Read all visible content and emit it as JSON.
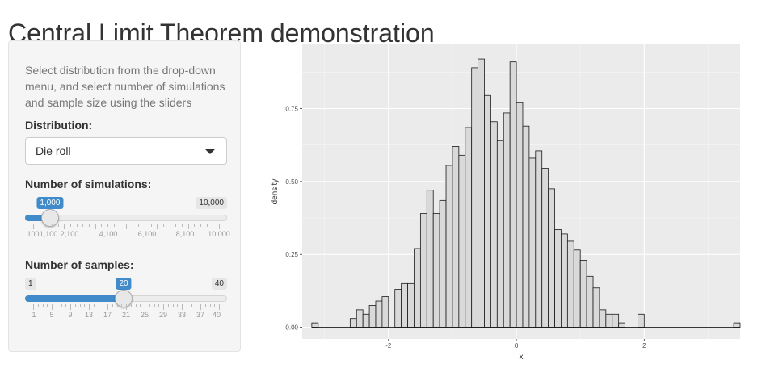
{
  "page": {
    "title": "Central Limit Theorem demonstration"
  },
  "sidebar": {
    "description": "Select distribution from the drop-down menu, and select number of simulations and sample size using the sliders",
    "distribution": {
      "label": "Distribution:",
      "selected": "Die roll"
    },
    "simulations": {
      "label": "Number of simulations:",
      "min": 100,
      "max": 10000,
      "value": 1000,
      "min_label": "100",
      "max_label": "10,000",
      "value_label": "1,000",
      "tick_labels": [
        "100",
        "1,100",
        "2,100",
        "4,100",
        "6,100",
        "8,100",
        "10,000"
      ]
    },
    "samples": {
      "label": "Number of samples:",
      "min": 1,
      "max": 40,
      "value": 20,
      "min_label": "1",
      "max_label": "40",
      "value_label": "20",
      "tick_labels": [
        "1",
        "5",
        "9",
        "13",
        "17",
        "21",
        "25",
        "29",
        "33",
        "37",
        "40"
      ]
    }
  },
  "chart_data": {
    "type": "bar",
    "xlabel": "x",
    "ylabel": "density",
    "xlim": [
      -3.35,
      3.5
    ],
    "ylim": [
      -0.04,
      0.97
    ],
    "x_ticks": [
      -2,
      0,
      2
    ],
    "x_tick_labels": [
      "-2",
      "0",
      "2"
    ],
    "y_ticks": [
      0,
      0.25,
      0.5,
      0.75
    ],
    "y_tick_labels": [
      "0.00",
      "0.25",
      "0.50",
      "0.75"
    ],
    "bin_width": 0.1,
    "x_start": -3.2,
    "values": [
      0.015,
      0,
      0,
      0,
      0,
      0,
      0.03,
      0.06,
      0.045,
      0.075,
      0.09,
      0.105,
      0,
      0.13,
      0.15,
      0.15,
      0.27,
      0.39,
      0.47,
      0.39,
      0.435,
      0.555,
      0.62,
      0.59,
      0.685,
      0.89,
      0.92,
      0.795,
      0.705,
      0.64,
      0.735,
      0.91,
      0.77,
      0.69,
      0.58,
      0.605,
      0.545,
      0.475,
      0.335,
      0.32,
      0.295,
      0.265,
      0.23,
      0.175,
      0.135,
      0.06,
      0.045,
      0.045,
      0.015,
      0,
      0,
      0.045,
      0,
      0,
      0,
      0,
      0,
      0,
      0,
      0,
      0,
      0,
      0,
      0,
      0,
      0,
      0.015
    ],
    "background": "#ebebeb",
    "grid": true,
    "bar_fill": "#d9d9d9",
    "bar_stroke": "#1a1a1a"
  }
}
